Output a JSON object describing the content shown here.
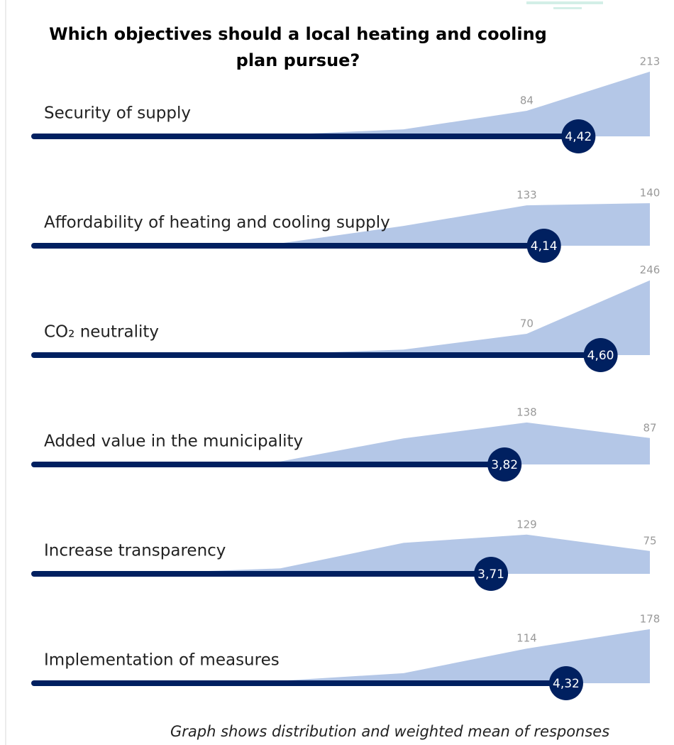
{
  "chart_data": {
    "type": "distribution",
    "title": "Which objectives should a local heating and cooling plan pursue?",
    "note": "Graph shows distribution and weighted mean of responses",
    "xlim": [
      0,
      5
    ],
    "ylim": [
      0,
      250
    ],
    "area_color": "#b4c7e7",
    "bar_color": "#002060",
    "rows": [
      {
        "label": "Security of supply",
        "values": [
          2,
          5,
          23,
          84,
          213
        ],
        "value_labels": [
          null,
          null,
          null,
          "84",
          "213"
        ],
        "mean": 4.42,
        "mean_label": "4,42"
      },
      {
        "label": "Affordability of heating and cooling supply",
        "values": [
          3,
          8,
          65,
          133,
          140
        ],
        "value_labels": [
          null,
          null,
          null,
          "133",
          "140"
        ],
        "mean": 4.14,
        "mean_label": "4,14"
      },
      {
        "label": "CO₂ neutrality",
        "values": [
          2,
          4,
          18,
          70,
          246
        ],
        "value_labels": [
          null,
          null,
          null,
          "70",
          "246"
        ],
        "mean": 4.6,
        "mean_label": "4,60"
      },
      {
        "label": "Added value in the municipality",
        "values": [
          3,
          10,
          86,
          138,
          87
        ],
        "value_labels": [
          null,
          null,
          null,
          "138",
          "87"
        ],
        "mean": 3.82,
        "mean_label": "3,82"
      },
      {
        "label": "Increase transparency",
        "values": [
          3,
          18,
          102,
          129,
          75
        ],
        "value_labels": [
          null,
          null,
          null,
          "129",
          "75"
        ],
        "mean": 3.71,
        "mean_label": "3,71"
      },
      {
        "label": "Implementation of measures",
        "values": [
          3,
          8,
          33,
          114,
          178
        ],
        "value_labels": [
          null,
          null,
          null,
          "114",
          "178"
        ],
        "mean": 4.32,
        "mean_label": "4,32"
      }
    ]
  }
}
